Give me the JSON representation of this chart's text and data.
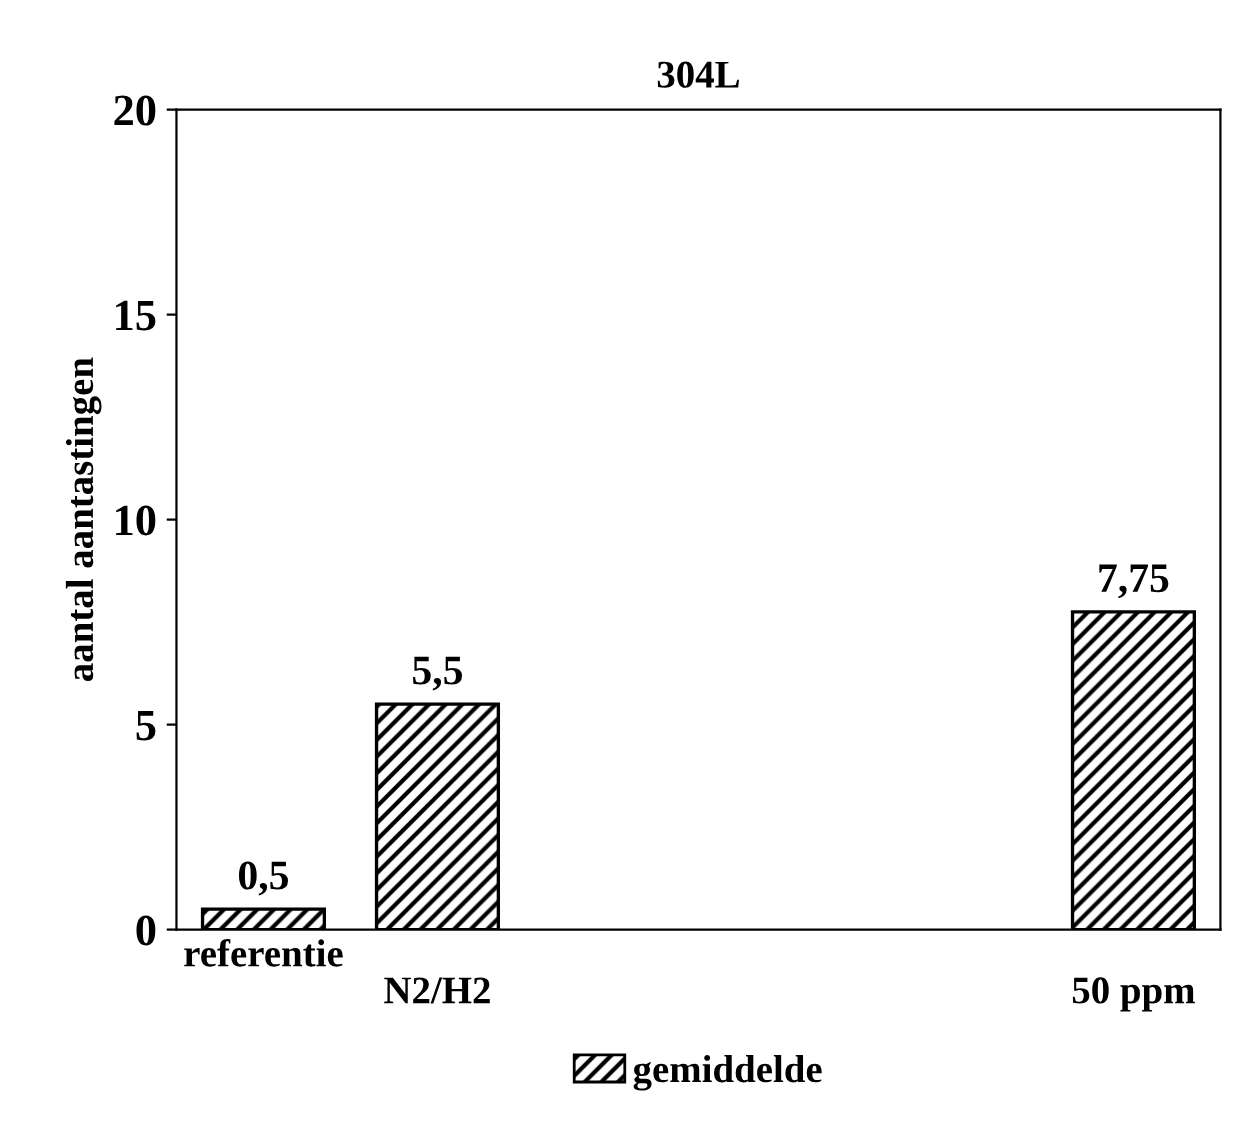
{
  "chart_data": {
    "type": "bar",
    "title": "304L",
    "ylabel": "aantal aantastingen",
    "categories": [
      "referentie",
      "N2/H2",
      null,
      null,
      null,
      "50 ppm"
    ],
    "series": [
      {
        "name": "gemiddelde",
        "color": "#000000",
        "values": [
          0.5,
          5.5,
          null,
          null,
          null,
          7.75
        ],
        "value_labels": [
          "0,5",
          "5,5",
          null,
          null,
          null,
          "7,75"
        ]
      }
    ],
    "ylim": [
      0,
      20
    ],
    "yticks": [
      0,
      5,
      10,
      15,
      20
    ],
    "grid": false,
    "legend": "bottom"
  }
}
